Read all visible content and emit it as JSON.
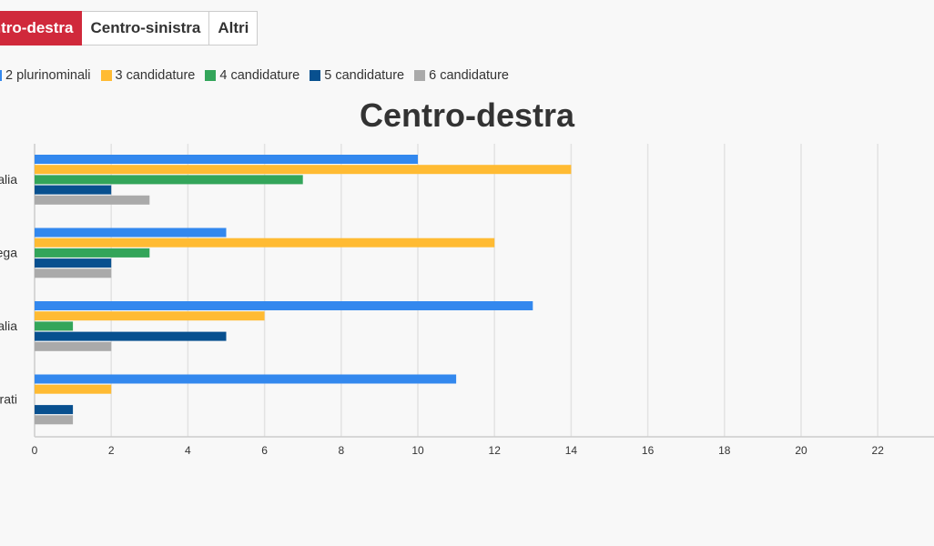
{
  "tabs": [
    {
      "label": "Centro-destra",
      "active": true
    },
    {
      "label": "Centro-sinistra",
      "active": false
    },
    {
      "label": "Altri",
      "active": false
    }
  ],
  "colors": {
    "tab_active": "#d0293b",
    "series": [
      "#3388ee",
      "#ffbb33",
      "#33a55a",
      "#08508f",
      "#aaaaaa"
    ]
  },
  "chart_data": {
    "type": "bar",
    "orientation": "horizontal",
    "title": "Centro-destra",
    "categories": [
      "Forza Italia",
      "Lega",
      "Fratelli d'Italia",
      "Moderati"
    ],
    "series": [
      {
        "name": "2 plurinominali",
        "values": [
          10,
          5,
          13,
          11
        ]
      },
      {
        "name": "3 candidature",
        "values": [
          14,
          12,
          6,
          2
        ]
      },
      {
        "name": "4 candidature",
        "values": [
          7,
          3,
          1,
          0
        ]
      },
      {
        "name": "5 candidature",
        "values": [
          2,
          2,
          5,
          1
        ]
      },
      {
        "name": "6 candidature",
        "values": [
          3,
          2,
          2,
          1
        ]
      }
    ],
    "xticks": [
      0,
      2,
      4,
      6,
      8,
      10,
      12,
      14,
      16,
      18,
      20,
      22
    ],
    "xlim": [
      0,
      24
    ],
    "grid": true,
    "legend": "top-left"
  }
}
